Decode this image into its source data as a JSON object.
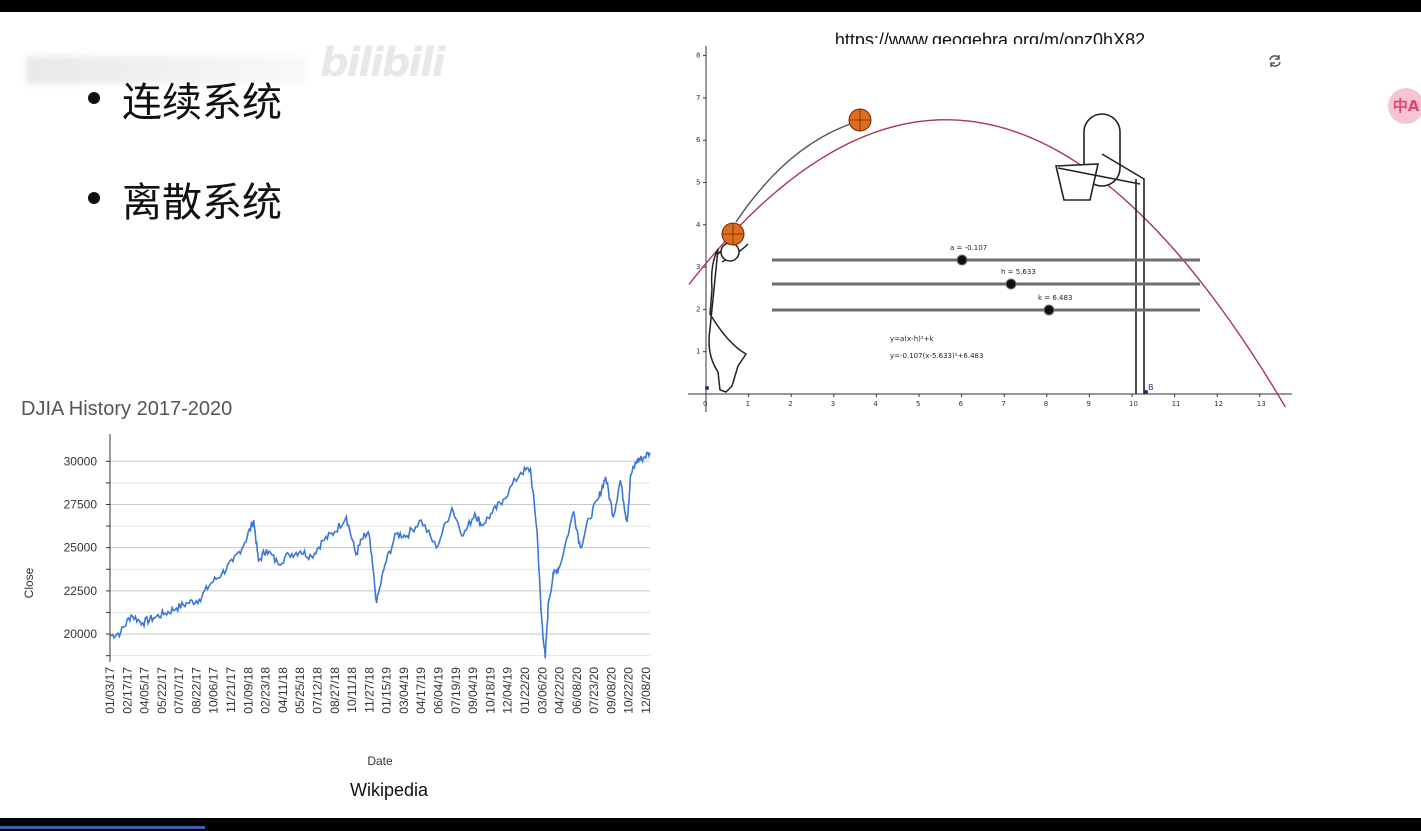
{
  "slide": {
    "bullets": [
      "连续系统",
      "离散系统"
    ],
    "watermark": "bilibili",
    "geogebra_url": "https://www.geogebra.org/m/onz0hX82",
    "badge": "中A"
  },
  "geogebra": {
    "equation_general": "y=a(x-h)²+k",
    "equation_specific": "y=-0.107(x-5.633)²+6.483",
    "sliders": [
      {
        "label": "a = -0.107",
        "value": -0.107
      },
      {
        "label": "h = 5.633",
        "value": 5.633
      },
      {
        "label": "k = 6.483",
        "value": 6.483
      }
    ],
    "point_label": "B",
    "icons": [
      "refresh-icon",
      "basketball-icon",
      "hoop-icon",
      "player-icon"
    ]
  },
  "chart_data": [
    {
      "type": "line",
      "title": "DJIA History 2017-2020",
      "xlabel": "Date",
      "ylabel": "Close",
      "source": "Wikipedia",
      "yticks": [
        20000,
        22500,
        25000,
        27500,
        30000
      ],
      "ylim": [
        18500,
        31000
      ],
      "xticks": [
        "01/03/17",
        "02/17/17",
        "04/05/17",
        "05/22/17",
        "07/07/17",
        "08/22/17",
        "10/06/17",
        "11/21/17",
        "01/09/18",
        "02/23/18",
        "04/11/18",
        "05/25/18",
        "07/12/18",
        "08/27/18",
        "10/11/18",
        "11/27/18",
        "01/15/19",
        "03/04/19",
        "04/17/19",
        "06/04/19",
        "07/19/19",
        "09/04/19",
        "10/18/19",
        "12/04/19",
        "01/22/20",
        "03/06/20",
        "04/22/20",
        "06/08/20",
        "07/23/20",
        "09/08/20",
        "10/22/20",
        "12/08/20"
      ],
      "color": "#3c78d8",
      "series": [
        {
          "x": [
            "2017-01-03",
            "2017-02-01",
            "2017-03-01",
            "2017-04-01",
            "2017-05-01",
            "2017-06-01",
            "2017-07-01",
            "2017-08-01",
            "2017-09-01",
            "2017-10-01",
            "2017-11-01",
            "2017-12-01",
            "2018-01-02",
            "2018-01-26",
            "2018-02-08",
            "2018-03-01",
            "2018-04-01",
            "2018-05-01",
            "2018-06-01",
            "2018-07-01",
            "2018-08-01",
            "2018-09-01",
            "2018-10-03",
            "2018-10-29",
            "2018-11-15",
            "2018-12-03",
            "2018-12-24",
            "2019-01-15",
            "2019-02-15",
            "2019-03-15",
            "2019-04-23",
            "2019-06-03",
            "2019-07-15",
            "2019-08-15",
            "2019-09-15",
            "2019-10-03",
            "2019-11-01",
            "2019-12-01",
            "2020-01-17",
            "2020-02-12",
            "2020-03-01",
            "2020-03-12",
            "2020-03-23",
            "2020-04-01",
            "2020-04-15",
            "2020-05-01",
            "2020-06-08",
            "2020-06-26",
            "2020-07-20",
            "2020-08-15",
            "2020-09-02",
            "2020-09-23",
            "2020-10-12",
            "2020-10-30",
            "2020-11-09",
            "2020-11-25",
            "2020-12-08",
            "2020-12-31"
          ],
          "values": [
            19900,
            20100,
            21100,
            20650,
            20950,
            21200,
            21500,
            21800,
            22000,
            22900,
            23500,
            24200,
            25300,
            26600,
            24200,
            24900,
            24100,
            24600,
            24800,
            24500,
            25400,
            25900,
            26800,
            24600,
            25500,
            25800,
            21800,
            24000,
            25800,
            25700,
            26600,
            25000,
            27300,
            25700,
            27000,
            26300,
            27000,
            27800,
            29350,
            29550,
            26000,
            21300,
            18600,
            21900,
            23500,
            23900,
            27100,
            25000,
            26700,
            27900,
            29100,
            26800,
            28900,
            26500,
            29200,
            30000,
            30150,
            30500
          ]
        }
      ]
    }
  ]
}
